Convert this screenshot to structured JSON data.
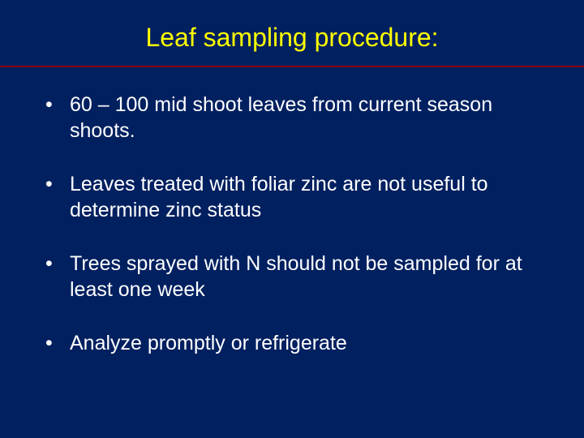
{
  "slide": {
    "title": "Leaf sampling procedure:",
    "title_color": "#ffff00",
    "title_fontsize": 32,
    "background_color": "#002060",
    "underline_color": "#8b0000",
    "text_color": "#ffffff",
    "bullet_fontsize": 25,
    "bullets": [
      "60 – 100 mid shoot leaves from current season shoots.",
      "Leaves treated with foliar zinc are not useful to determine zinc status",
      "Trees sprayed with N should not be sampled for at least one week",
      "Analyze promptly or refrigerate"
    ]
  }
}
